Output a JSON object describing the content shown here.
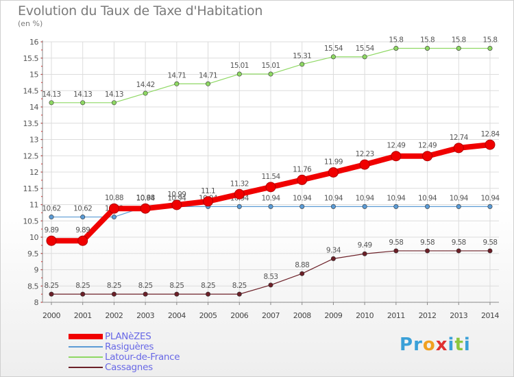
{
  "title": "Evolution du Taux de Taxe d'Habitation",
  "unit": "(en %)",
  "logo": {
    "text": "Proxiti",
    "letters": [
      "P",
      "r",
      "o",
      "x",
      "i",
      "t",
      "i"
    ],
    "colors": [
      "#3aa0d8",
      "#3aa0d8",
      "#f0a020",
      "#e03030",
      "#3aa0d8",
      "#8cc63f",
      "#3aa0d8"
    ]
  },
  "chart_data": {
    "type": "line",
    "title": "Evolution du Taux de Taxe d'Habitation",
    "ylabel": "(en %)",
    "xlabel": "",
    "ylim": [
      8,
      16
    ],
    "y_ticks": [
      "8",
      "8.5",
      "9",
      "9.5",
      "10",
      "10.5",
      "11",
      "11.5",
      "12",
      "12.5",
      "13",
      "13.5",
      "14",
      "14.5",
      "15",
      "15.5",
      "16"
    ],
    "categories": [
      "2000",
      "2001",
      "2002",
      "2003",
      "2004",
      "2005",
      "2006",
      "2007",
      "2008",
      "2009",
      "2010",
      "2011",
      "2012",
      "2013",
      "2014"
    ],
    "grid": true,
    "legend_position": "bottom-left",
    "series": [
      {
        "name": "Rasiguères",
        "color": "#5b9bd5",
        "values": [
          10.62,
          10.62,
          10.62,
          10.94,
          10.94,
          10.94,
          10.94,
          10.94,
          10.94,
          10.94,
          10.94,
          10.94,
          10.94,
          10.94,
          10.94
        ],
        "labels": [
          "10.62",
          "10.62",
          "10.62",
          "10.94",
          "10.94",
          "10.94",
          "10.94",
          "10.94",
          "10.94",
          "10.94",
          "10.94",
          "10.94",
          "10.94",
          "10.94",
          "10.94"
        ]
      },
      {
        "name": "Latour-de-France",
        "color": "#8ed863",
        "values": [
          14.13,
          14.13,
          14.13,
          14.42,
          14.71,
          14.71,
          15.01,
          15.01,
          15.31,
          15.54,
          15.54,
          15.8,
          15.8,
          15.8,
          15.8
        ],
        "labels": [
          "14.13",
          "14.13",
          "14.13",
          "14.42",
          "14.71",
          "14.71",
          "15.01",
          "15.01",
          "15.31",
          "15.54",
          "15.54",
          "15.8",
          "15.8",
          "15.8",
          "15.8"
        ]
      },
      {
        "name": "Cassagnes",
        "color": "#6b1f27",
        "values": [
          8.25,
          8.25,
          8.25,
          8.25,
          8.25,
          8.25,
          8.25,
          8.53,
          8.88,
          9.34,
          9.49,
          9.58,
          9.58,
          9.58,
          9.58
        ],
        "labels": [
          "8.25",
          "8.25",
          "8.25",
          "8.25",
          "8.25",
          "8.25",
          "8.25",
          "8.53",
          "8.88",
          "9.34",
          "9.49",
          "9.58",
          "9.58",
          "9.58",
          "9.58"
        ]
      },
      {
        "name": "PLANèZES",
        "color": "#f00000",
        "values": [
          9.89,
          9.89,
          10.88,
          10.88,
          10.99,
          11.1,
          11.32,
          11.54,
          11.76,
          11.99,
          12.23,
          12.49,
          12.49,
          12.74,
          12.84
        ],
        "labels": [
          "9.89",
          "9.89",
          "10.88",
          "10.88",
          "10.99",
          "11.1",
          "11.32",
          "11.54",
          "11.76",
          "11.99",
          "12.23",
          "12.49",
          "12.49",
          "12.74",
          "12.84"
        ]
      }
    ],
    "legend": [
      "PLANèZES",
      "Rasiguères",
      "Latour-de-France",
      "Cassagnes"
    ]
  }
}
